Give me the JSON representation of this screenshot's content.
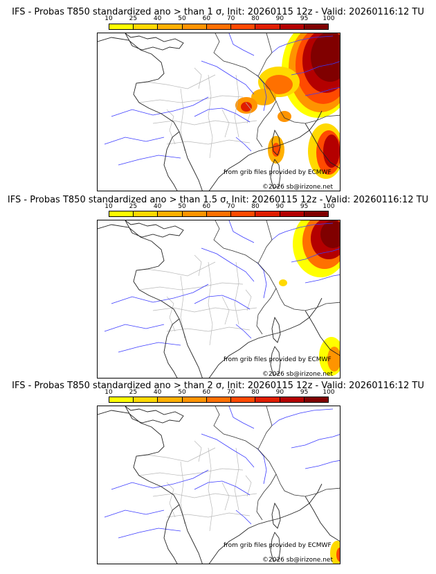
{
  "panels": [
    {
      "title": "IFS - Probas T850  standardized ano > than 1 σ, Init: 20260115 12z - Valid: 20260116:12 TU",
      "credit_source": "from grib files provided by ECMWF",
      "credit_copyright": "©2026 sb@irizone.net"
    },
    {
      "title": "IFS - Probas T850  standardized ano > than 1.5 σ, Init: 20260115 12z - Valid: 20260116:12 TU",
      "credit_source": "from grib files provided by ECMWF",
      "credit_copyright": "©2026 sb@irizone.net"
    },
    {
      "title": "IFS - Probas T850  standardized ano > than 2 σ, Init: 20260115 12z - Valid: 20260116:12 TU",
      "credit_source": "from grib files provided by ECMWF",
      "credit_copyright": "©2026 sb@irizone.net"
    }
  ],
  "colorbar": {
    "labels": [
      "10",
      "25",
      "40",
      "50",
      "60",
      "70",
      "80",
      "90",
      "95",
      "100"
    ],
    "colors": [
      "#ffff00",
      "#ffd900",
      "#ffb000",
      "#ff9400",
      "#ff7000",
      "#ff4a00",
      "#e01e00",
      "#b40000",
      "#800000"
    ]
  }
}
